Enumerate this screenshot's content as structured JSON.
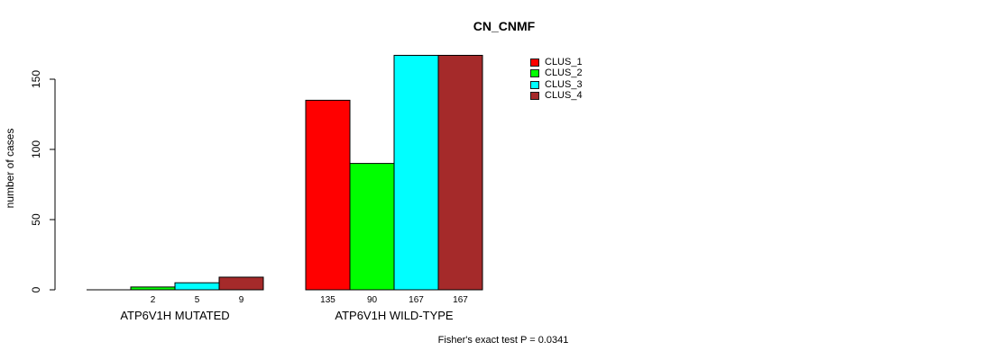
{
  "chart": {
    "title": "CN_CNMF",
    "ylabel": "number of cases",
    "annotation": "Fisher's exact test P = 0.0341"
  },
  "chart_data": {
    "type": "bar",
    "title": "CN_CNMF",
    "xlabel": "",
    "ylabel": "number of cases",
    "categories": [
      "ATP6V1H MUTATED",
      "ATP6V1H WILD-TYPE"
    ],
    "series": [
      {
        "name": "CLUS_1",
        "color": "#FF0000",
        "values": [
          0,
          135
        ]
      },
      {
        "name": "CLUS_2",
        "color": "#00FF00",
        "values": [
          2,
          90
        ]
      },
      {
        "name": "CLUS_3",
        "color": "#00FFFF",
        "values": [
          5,
          167
        ]
      },
      {
        "name": "CLUS_4",
        "color": "#A52A2A",
        "values": [
          9,
          167
        ]
      }
    ],
    "bar_value_labels": [
      [
        "",
        "2",
        "5",
        "9"
      ],
      [
        "135",
        "90",
        "167",
        "167"
      ]
    ],
    "yticks": [
      0,
      50,
      100,
      150
    ],
    "ylim": [
      0,
      168
    ],
    "grid": false,
    "legend_position": "top-right",
    "legend_entries": [
      "CLUS_1",
      "CLUS_2",
      "CLUS_3",
      "CLUS_4"
    ],
    "annotation": "Fisher's exact test P = 0.0341",
    "bar_outline_color": "#000000",
    "axis_color": "#000000",
    "background": "#FFFFFF"
  }
}
